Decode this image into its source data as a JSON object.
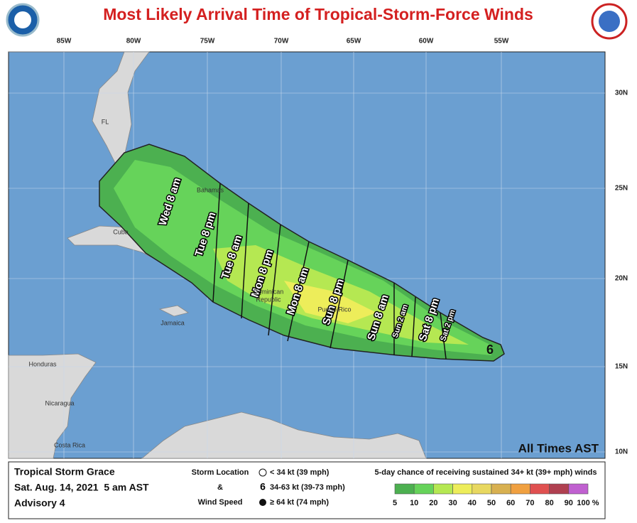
{
  "title": "Most Likely Arrival Time of Tropical-Storm-Force Winds",
  "map": {
    "lon_labels": [
      "85W",
      "80W",
      "75W",
      "70W",
      "65W",
      "60W",
      "55W"
    ],
    "lat_labels": [
      "30N",
      "25N",
      "20N",
      "15N",
      "10N"
    ],
    "places": [
      "FL",
      "Bahamas",
      "Cuba",
      "Jamaica",
      "Dominican",
      "Republic",
      "Puerto Rico",
      "Honduras",
      "Nicaragua",
      "Costa Rica"
    ],
    "arrival_times": [
      "Wed 8 am",
      "Tue 8 pm",
      "Tue 8 am",
      "Mon 8 pm",
      "Mon 8 am",
      "Sun 8 pm",
      "Sun 8 am",
      "Sun 2 am",
      "Sat 8 pm",
      "Sat 2 pm"
    ],
    "note": "All Times AST"
  },
  "footer": {
    "storm": "Tropical Storm Grace",
    "issued": "Sat. Aug. 14, 2021  5 am AST",
    "advisory": "Advisory 4",
    "legend_heading": [
      "Storm Location",
      "&",
      "Wind Speed"
    ],
    "legend_items": [
      "< 34 kt (39 mph)",
      "34-63 kt (39-73 mph)",
      "≥ 64 kt (74 mph)"
    ],
    "scale_title": "5-day chance of receiving sustained 34+ kt (39+ mph) winds",
    "scale_labels": [
      5,
      10,
      20,
      30,
      40,
      50,
      60,
      70,
      80,
      90,
      "100 %"
    ]
  }
}
